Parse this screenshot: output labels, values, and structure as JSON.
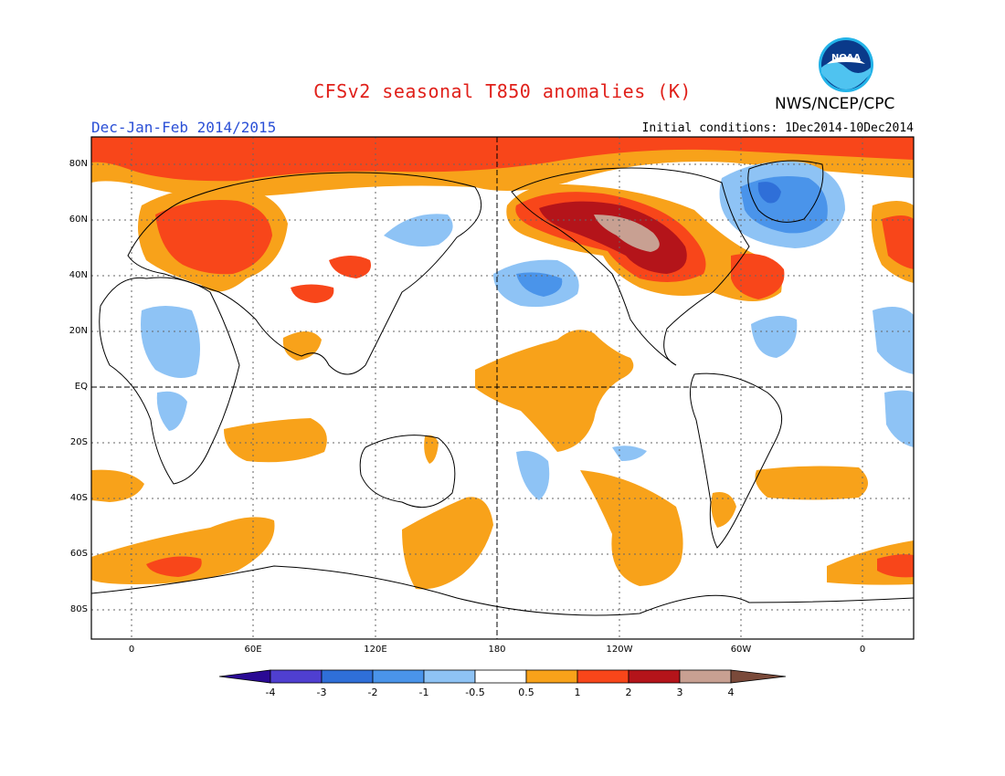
{
  "header": {
    "title": "CFSv2 seasonal T850 anomalies (K)",
    "season": "Dec-Jan-Feb 2014/2015",
    "initial_conditions": "Initial conditions: 1Dec2014-10Dec2014",
    "agency": "NWS/NCEP/CPC",
    "logo_text": "NOAA"
  },
  "map": {
    "lat_labels": [
      "80N",
      "60N",
      "40N",
      "20N",
      "EQ",
      "20S",
      "40S",
      "60S",
      "80S"
    ],
    "lon_labels": [
      "0",
      "60E",
      "120E",
      "180",
      "120W",
      "60W",
      "0"
    ]
  },
  "colorbar": {
    "labels": [
      "-4",
      "-3",
      "-2",
      "-1",
      "-0.5",
      "0.5",
      "1",
      "2",
      "3",
      "4"
    ],
    "colors": [
      "#2a0a94",
      "#4f3fd0",
      "#2f6fd8",
      "#4a94ea",
      "#8ec3f5",
      "#ffffff",
      "#f8a21a",
      "#f8461a",
      "#b4141a",
      "#c8a092",
      "#7a4a3a"
    ]
  }
}
